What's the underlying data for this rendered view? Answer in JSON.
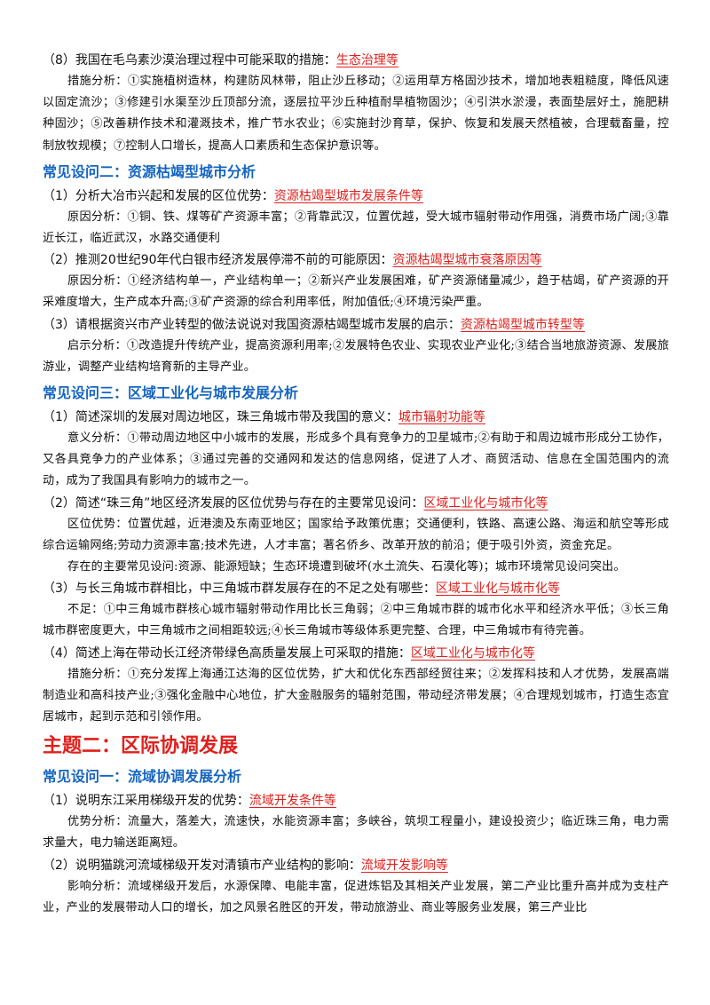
{
  "items": [
    {
      "type": "q",
      "text": "（8）我国在毛乌素沙漠治理过程中可能采取的措施：",
      "link": "生态治理等"
    },
    {
      "type": "p",
      "text": "措施分析：①实施植树造林，构建防风林带，阻止沙丘移动；②运用草方格固沙技术，增加地表粗糙度，降低风速以固定流沙；③修建引水渠至沙丘顶部分流，逐层拉平沙丘种植耐旱植物固沙；④引洪水淤漫，表面垫层好土，施肥耕种固沙；⑤改善耕作技术和灌溉技术，推广节水农业；⑥实施封沙育草，保护、恢复和发展天然植被，合理载畜量，控制放牧规模；⑦控制人口增长，提高人口素质和生态保护意识等。"
    },
    {
      "type": "h2",
      "text": "常见设问二：资源枯竭型城市分析"
    },
    {
      "type": "q",
      "text": "（1）分析大冶市兴起和发展的区位优势：",
      "link": "资源枯竭型城市发展条件等"
    },
    {
      "type": "p",
      "text": "原因分析：①铜、铁、煤等矿产资源丰富；②背靠武汉，位置优越，受大城市辐射带动作用强，消费市场广阔;③靠近长江，临近武汉，水路交通便利"
    },
    {
      "type": "q",
      "text": "（2）推测20世纪90年代白银市经济发展停滞不前的可能原因：",
      "link": "资源枯竭型城市衰落原因等"
    },
    {
      "type": "p",
      "text": "原因分析：①经济结构单一，产业结构单一；②新兴产业发展困难，矿产资源储量减少，趋于枯竭，矿产资源的开采难度增大，生产成本升高;③矿产资源的综合利用率低，附加值低;④环境污染严重。"
    },
    {
      "type": "q",
      "text": "（3）请根据资兴市产业转型的做法说说对我国资源枯竭型城市发展的启示：",
      "link": "资源枯竭型城市转型等"
    },
    {
      "type": "p",
      "text": "启示分析：①改造提升传统产业，提高资源利用率;②发展特色农业、实现农业产业化;③结合当地旅游资源、发展旅游业，调整产业结构培育新的主导产业。"
    },
    {
      "type": "h2",
      "text": "常见设问三：区域工业化与城市发展分析"
    },
    {
      "type": "q",
      "text": "（1）简述深圳的发展对周边地区，珠三角城市带及我国的意义：",
      "link": "城市辐射功能等"
    },
    {
      "type": "p",
      "text": "意义分析：①带动周边地区中小城市的发展，形成多个具有竞争力的卫星城市;②有助于和周边城市形成分工协作，又各具竞争力的产业体系；③通过完善的交通网和发达的信息网络，促进了人才、商贸活动、信息在全国范围内的流动，成为了我国具有影响力的城市之一。"
    },
    {
      "type": "q",
      "text": "（2）简述“珠三角”地区经济发展的区位优势与存在的主要常见设问：",
      "link": "区域工业化与城市化等"
    },
    {
      "type": "p",
      "text": "区位优势：位置优越，近港澳及东南亚地区；国家给予政策优惠；交通便利，铁路、高速公路、海运和航空等形成综合运输网络;劳动力资源丰富;技术先进，人才丰富；著名侨乡、改革开放的前沿；便于吸引外资，资金充足。"
    },
    {
      "type": "p",
      "text": "存在的主要常见设问:资源、能源短缺；生态环境遭到破坏(水土流失、石漠化等)；城市环境常见设问突出。"
    },
    {
      "type": "q",
      "text": "（3）与长三角城市群相比，中三角城市群发展存在的不足之处有哪些：",
      "link": "区域工业化与城市化等"
    },
    {
      "type": "p",
      "text": "不足：①中三角城市群核心城市辐射带动作用比长三角弱；②中三角城市群的城市化水平和经济水平低；③长三角城市群密度更大，中三角城市之间相距较远;④长三角城市等级体系更完整、合理，中三角城市有待完善。"
    },
    {
      "type": "q",
      "text": "（4）简述上海在带动长江经济带绿色高质量发展上可采取的措施：",
      "link": "区域工业化与城市化等"
    },
    {
      "type": "p",
      "text": "措施分析：①充分发挥上海通江达海的区位优势，扩大和优化东西部经贸往来；②发挥科技和人才优势，发展高端制造业和高科技产业;③强化金融中心地位，扩大金融服务的辐射范围，带动经济带发展；④合理规划城市，打造生态宜居城市，起到示范和引领作用。"
    },
    {
      "type": "h1",
      "text": "主题二：区际协调发展"
    },
    {
      "type": "h2",
      "text": "常见设问一：流域协调发展分析"
    },
    {
      "type": "q",
      "text": "（1）说明东江采用梯级开发的优势：",
      "link": "流域开发条件等"
    },
    {
      "type": "p",
      "text": "优势分析：流量大，落差大，流速快，水能资源丰富；多峡谷，筑坝工程量小，建设投资少；临近珠三角，电力需求量大，电力输送距离短。"
    },
    {
      "type": "q",
      "text": "（2）说明猫跳河流域梯级开发对清镇市产业结构的影响：",
      "link": "流域开发影响等"
    },
    {
      "type": "p",
      "text": "影响分析：流域梯级开发后，水源保障、电能丰富，促进炼铝及其相关产业发展，第二产业比重升高并成为支柱产业，产业的发展带动人口的增长，加之风景名胜区的开发，带动旅游业、商业等服务业发展，第三产业比"
    }
  ]
}
